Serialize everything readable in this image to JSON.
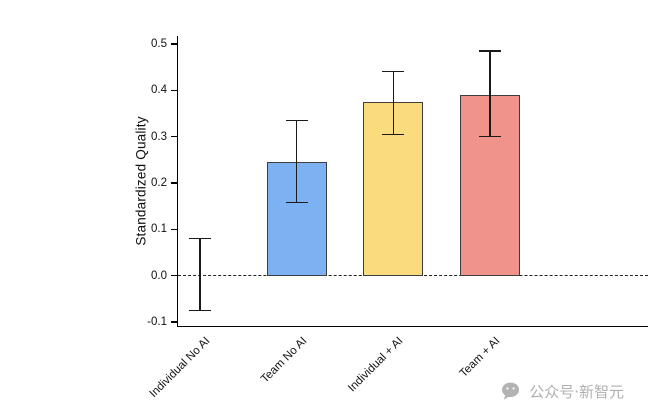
{
  "chart_data": {
    "type": "bar",
    "title": "",
    "ylabel": "Standardized Quality",
    "xlabel": "",
    "categories": [
      "Individual No AI",
      "Team No AI",
      "Individual + AI",
      "Team + AI"
    ],
    "values": [
      0,
      0.245,
      0.375,
      0.39
    ],
    "error_low": [
      -0.075,
      0.158,
      0.305,
      0.3
    ],
    "error_high": [
      0.08,
      0.335,
      0.44,
      0.485
    ],
    "bar_fills": [
      "none",
      "#7db2f2",
      "#fadc7e",
      "#f0938b"
    ],
    "bar_border": "#3d3d3d",
    "error_color": "#1a1a1a",
    "ylim": [
      -0.1,
      0.5
    ],
    "yticks": [
      -0.1,
      0.0,
      0.1,
      0.2,
      0.3,
      0.4,
      0.5
    ],
    "zero_line": "dashed",
    "grid": false,
    "legend": "none"
  },
  "watermark": {
    "icon": "wechat-bubble-icon",
    "text": "公众号·新智元"
  }
}
